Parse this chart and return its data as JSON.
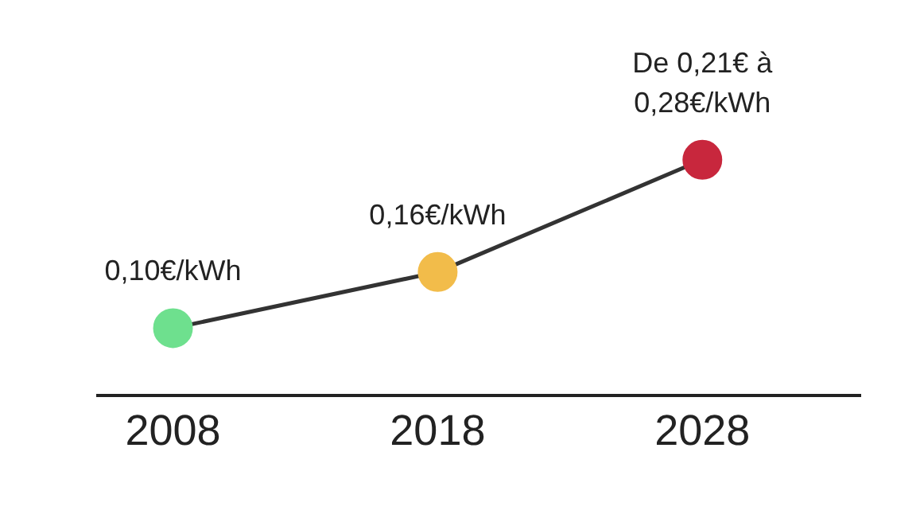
{
  "chart_data": {
    "type": "line",
    "color": "#333333",
    "marker": "circle",
    "x": [
      2008,
      2018,
      2028
    ],
    "values": [
      0.1,
      0.16,
      0.28
    ],
    "colors": [
      "#6ee08e",
      "#f2bc4a",
      "#c8273d"
    ],
    "value_labels": [
      "0,10€/kWh",
      "0,16€/kWh",
      "De 0,21€ à\n0,28€/kWh"
    ],
    "xlim": [
      2005.1,
      2034
    ],
    "xticks": [
      2008,
      2018,
      2028
    ],
    "grid": false,
    "tick_labels": "x"
  }
}
